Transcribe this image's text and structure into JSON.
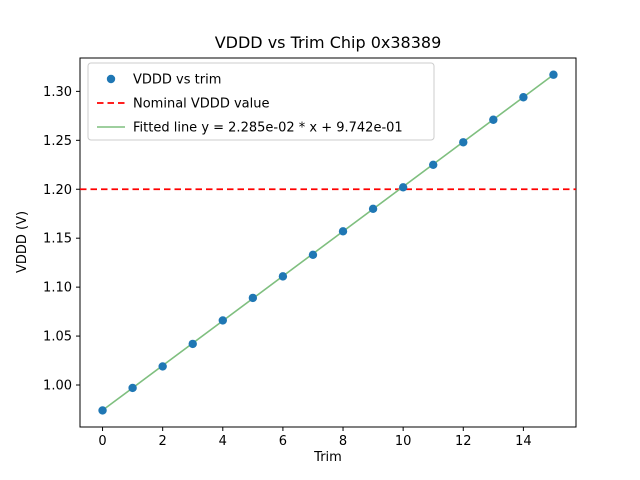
{
  "figure": {
    "background": "#ffffff"
  },
  "chart_data": {
    "type": "scatter",
    "title": "VDDD vs Trim Chip 0x38389",
    "xlabel": "Trim",
    "ylabel": "VDDD (V)",
    "xlim": [
      -0.75,
      15.75
    ],
    "ylim": [
      0.9571,
      1.3341
    ],
    "xticks": [
      0,
      2,
      4,
      6,
      8,
      10,
      12,
      14
    ],
    "xtick_labels": [
      "0",
      "2",
      "4",
      "6",
      "8",
      "10",
      "12",
      "14"
    ],
    "yticks": [
      1.0,
      1.05,
      1.1,
      1.15,
      1.2,
      1.25,
      1.3
    ],
    "ytick_labels": [
      "1.00",
      "1.05",
      "1.10",
      "1.15",
      "1.20",
      "1.25",
      "1.30"
    ],
    "grid": false,
    "legend_position": "upper left",
    "series": [
      {
        "name": "VDDD vs trim",
        "kind": "scatter",
        "color": "#1f77b4",
        "marker": "circle",
        "x": [
          0,
          1,
          2,
          3,
          4,
          5,
          6,
          7,
          8,
          9,
          10,
          11,
          12,
          13,
          14,
          15
        ],
        "y": [
          0.974,
          0.997,
          1.019,
          1.042,
          1.066,
          1.089,
          1.111,
          1.133,
          1.157,
          1.18,
          1.202,
          1.225,
          1.248,
          1.271,
          1.294,
          1.317
        ]
      },
      {
        "name": "Nominal VDDD value",
        "kind": "hline",
        "color": "#ff0000",
        "linestyle": "dashed",
        "y": 1.2
      },
      {
        "name": "Fitted line y = 2.285e-02 * x + 9.742e-01",
        "kind": "fitline",
        "color": "#7fbf7f",
        "slope": 0.02285,
        "intercept": 0.9742,
        "x_range": [
          0,
          15
        ]
      }
    ]
  }
}
